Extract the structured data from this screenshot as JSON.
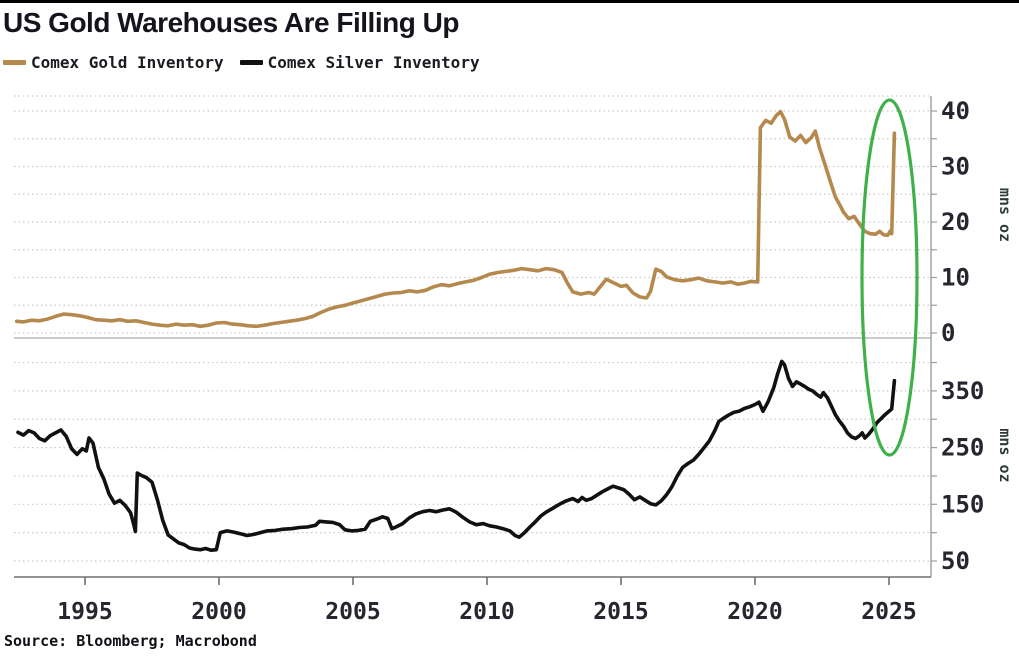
{
  "title": "US Gold Warehouses Are Filling Up",
  "source": "Source: Bloomberg; Macrobond",
  "legend": [
    {
      "label": "Comex Gold Inventory",
      "color": "#b5894e"
    },
    {
      "label": "Comex Silver Inventory",
      "color": "#111111"
    }
  ],
  "axis_unit": "mns oz",
  "x_axis": {
    "ticks": [
      1995,
      2000,
      2005,
      2010,
      2015,
      2020,
      2025
    ],
    "range": [
      1992.4,
      2026.6
    ]
  },
  "annotation": {
    "type": "ellipse",
    "color": "#3fb04a",
    "note": "circles the early-2025 spike in both series"
  },
  "chart_data": [
    {
      "type": "line",
      "panel": "top",
      "name": "Comex Gold Inventory",
      "color": "#b5894e",
      "ylabel": "mns oz",
      "ylim": [
        0,
        42
      ],
      "yticks": [
        0,
        10,
        20,
        30,
        40
      ],
      "gridlines": [
        0,
        5,
        10,
        15,
        20,
        25,
        30,
        35,
        40
      ],
      "points": [
        [
          1992.45,
          2.1
        ],
        [
          1992.7,
          2.0
        ],
        [
          1993.0,
          2.3
        ],
        [
          1993.3,
          2.2
        ],
        [
          1993.6,
          2.5
        ],
        [
          1993.9,
          3.0
        ],
        [
          1994.2,
          3.4
        ],
        [
          1994.5,
          3.3
        ],
        [
          1994.8,
          3.1
        ],
        [
          1995.1,
          2.8
        ],
        [
          1995.4,
          2.4
        ],
        [
          1995.7,
          2.3
        ],
        [
          1996.0,
          2.2
        ],
        [
          1996.3,
          2.4
        ],
        [
          1996.6,
          2.1
        ],
        [
          1996.9,
          2.2
        ],
        [
          1997.2,
          1.9
        ],
        [
          1997.5,
          1.6
        ],
        [
          1997.8,
          1.4
        ],
        [
          1998.1,
          1.3
        ],
        [
          1998.4,
          1.6
        ],
        [
          1998.7,
          1.4
        ],
        [
          1999.0,
          1.5
        ],
        [
          1999.3,
          1.2
        ],
        [
          1999.6,
          1.4
        ],
        [
          1999.9,
          1.8
        ],
        [
          2000.2,
          1.9
        ],
        [
          2000.5,
          1.6
        ],
        [
          2000.8,
          1.5
        ],
        [
          2001.1,
          1.3
        ],
        [
          2001.4,
          1.2
        ],
        [
          2001.7,
          1.4
        ],
        [
          2002.0,
          1.7
        ],
        [
          2002.3,
          1.9
        ],
        [
          2002.6,
          2.1
        ],
        [
          2002.9,
          2.3
        ],
        [
          2003.2,
          2.6
        ],
        [
          2003.5,
          3.0
        ],
        [
          2003.8,
          3.7
        ],
        [
          2004.1,
          4.3
        ],
        [
          2004.4,
          4.7
        ],
        [
          2004.7,
          5.0
        ],
        [
          2005.0,
          5.4
        ],
        [
          2005.3,
          5.8
        ],
        [
          2005.6,
          6.2
        ],
        [
          2005.9,
          6.6
        ],
        [
          2006.2,
          7.0
        ],
        [
          2006.5,
          7.2
        ],
        [
          2006.8,
          7.3
        ],
        [
          2007.1,
          7.6
        ],
        [
          2007.4,
          7.4
        ],
        [
          2007.7,
          7.7
        ],
        [
          2008.0,
          8.3
        ],
        [
          2008.3,
          8.7
        ],
        [
          2008.6,
          8.5
        ],
        [
          2008.9,
          8.9
        ],
        [
          2009.2,
          9.2
        ],
        [
          2009.5,
          9.5
        ],
        [
          2009.8,
          10.0
        ],
        [
          2010.1,
          10.6
        ],
        [
          2010.4,
          10.9
        ],
        [
          2010.7,
          11.1
        ],
        [
          2011.0,
          11.3
        ],
        [
          2011.3,
          11.6
        ],
        [
          2011.6,
          11.4
        ],
        [
          2011.9,
          11.2
        ],
        [
          2012.2,
          11.6
        ],
        [
          2012.5,
          11.4
        ],
        [
          2012.8,
          10.9
        ],
        [
          2013.0,
          9.0
        ],
        [
          2013.2,
          7.4
        ],
        [
          2013.5,
          7.0
        ],
        [
          2013.8,
          7.3
        ],
        [
          2014.0,
          7.0
        ],
        [
          2014.2,
          8.2
        ],
        [
          2014.45,
          9.7
        ],
        [
          2014.7,
          9.1
        ],
        [
          2015.0,
          8.4
        ],
        [
          2015.2,
          8.6
        ],
        [
          2015.45,
          7.2
        ],
        [
          2015.7,
          6.5
        ],
        [
          2015.95,
          6.3
        ],
        [
          2016.1,
          7.5
        ],
        [
          2016.3,
          11.5
        ],
        [
          2016.5,
          11.1
        ],
        [
          2016.7,
          10.1
        ],
        [
          2017.0,
          9.6
        ],
        [
          2017.3,
          9.4
        ],
        [
          2017.6,
          9.6
        ],
        [
          2017.9,
          9.9
        ],
        [
          2018.2,
          9.4
        ],
        [
          2018.5,
          9.2
        ],
        [
          2018.8,
          9.0
        ],
        [
          2019.1,
          9.2
        ],
        [
          2019.35,
          8.8
        ],
        [
          2019.6,
          9.0
        ],
        [
          2019.85,
          9.3
        ],
        [
          2020.1,
          9.2
        ],
        [
          2020.2,
          37.0
        ],
        [
          2020.4,
          38.3
        ],
        [
          2020.6,
          37.8
        ],
        [
          2020.8,
          39.2
        ],
        [
          2020.95,
          39.9
        ],
        [
          2021.1,
          38.5
        ],
        [
          2021.3,
          35.3
        ],
        [
          2021.5,
          34.6
        ],
        [
          2021.7,
          35.6
        ],
        [
          2021.9,
          34.3
        ],
        [
          2022.1,
          35.2
        ],
        [
          2022.25,
          36.4
        ],
        [
          2022.4,
          33.5
        ],
        [
          2022.6,
          30.5
        ],
        [
          2022.8,
          27.5
        ],
        [
          2023.0,
          24.5
        ],
        [
          2023.15,
          23.2
        ],
        [
          2023.3,
          21.8
        ],
        [
          2023.5,
          20.6
        ],
        [
          2023.7,
          21.0
        ],
        [
          2023.9,
          19.6
        ],
        [
          2024.1,
          18.3
        ],
        [
          2024.3,
          17.9
        ],
        [
          2024.5,
          17.8
        ],
        [
          2024.65,
          18.3
        ],
        [
          2024.8,
          17.7
        ],
        [
          2024.95,
          17.6
        ],
        [
          2025.05,
          18.4
        ],
        [
          2025.1,
          17.9
        ],
        [
          2025.2,
          36.0
        ]
      ]
    },
    {
      "type": "line",
      "panel": "bottom",
      "name": "Comex Silver Inventory",
      "color": "#111111",
      "ylabel": "mns oz",
      "ylim": [
        30,
        415
      ],
      "yticks": [
        50,
        150,
        250,
        350
      ],
      "gridlines": [
        50,
        100,
        150,
        200,
        250,
        300,
        350,
        400
      ],
      "points": [
        [
          1992.5,
          277
        ],
        [
          1992.7,
          272
        ],
        [
          1992.9,
          280
        ],
        [
          1993.1,
          276
        ],
        [
          1993.3,
          266
        ],
        [
          1993.5,
          262
        ],
        [
          1993.7,
          271
        ],
        [
          1993.9,
          276
        ],
        [
          1994.1,
          281
        ],
        [
          1994.3,
          270
        ],
        [
          1994.5,
          248
        ],
        [
          1994.7,
          238
        ],
        [
          1994.9,
          248
        ],
        [
          1995.05,
          244
        ],
        [
          1995.15,
          267
        ],
        [
          1995.3,
          258
        ],
        [
          1995.5,
          215
        ],
        [
          1995.7,
          195
        ],
        [
          1995.9,
          168
        ],
        [
          1996.1,
          152
        ],
        [
          1996.3,
          157
        ],
        [
          1996.5,
          148
        ],
        [
          1996.7,
          135
        ],
        [
          1996.8,
          118
        ],
        [
          1996.88,
          102
        ],
        [
          1996.95,
          205
        ],
        [
          1997.1,
          201
        ],
        [
          1997.3,
          197
        ],
        [
          1997.5,
          189
        ],
        [
          1997.7,
          158
        ],
        [
          1997.9,
          122
        ],
        [
          1998.1,
          96
        ],
        [
          1998.3,
          89
        ],
        [
          1998.5,
          82
        ],
        [
          1998.7,
          79
        ],
        [
          1998.9,
          73
        ],
        [
          1999.1,
          71
        ],
        [
          1999.3,
          70
        ],
        [
          1999.5,
          72
        ],
        [
          1999.7,
          69
        ],
        [
          1999.9,
          70
        ],
        [
          2000.05,
          100
        ],
        [
          2000.3,
          103
        ],
        [
          2000.55,
          101
        ],
        [
          2000.8,
          98
        ],
        [
          2001.05,
          95
        ],
        [
          2001.3,
          97
        ],
        [
          2001.55,
          100
        ],
        [
          2001.8,
          103
        ],
        [
          2002.1,
          104
        ],
        [
          2002.4,
          106
        ],
        [
          2002.7,
          107
        ],
        [
          2003.0,
          109
        ],
        [
          2003.3,
          110
        ],
        [
          2003.6,
          113
        ],
        [
          2003.75,
          120
        ],
        [
          2004.0,
          119
        ],
        [
          2004.25,
          118
        ],
        [
          2004.5,
          114
        ],
        [
          2004.7,
          105
        ],
        [
          2004.95,
          103
        ],
        [
          2005.2,
          104
        ],
        [
          2005.45,
          106
        ],
        [
          2005.65,
          120
        ],
        [
          2005.9,
          124
        ],
        [
          2006.1,
          128
        ],
        [
          2006.3,
          125
        ],
        [
          2006.45,
          107
        ],
        [
          2006.6,
          110
        ],
        [
          2006.85,
          116
        ],
        [
          2007.1,
          126
        ],
        [
          2007.35,
          133
        ],
        [
          2007.6,
          137
        ],
        [
          2007.85,
          139
        ],
        [
          2008.1,
          137
        ],
        [
          2008.35,
          140
        ],
        [
          2008.6,
          142
        ],
        [
          2008.85,
          136
        ],
        [
          2009.1,
          127
        ],
        [
          2009.35,
          119
        ],
        [
          2009.6,
          114
        ],
        [
          2009.85,
          116
        ],
        [
          2010.1,
          112
        ],
        [
          2010.35,
          110
        ],
        [
          2010.6,
          107
        ],
        [
          2010.85,
          103
        ],
        [
          2011.05,
          95
        ],
        [
          2011.2,
          92
        ],
        [
          2011.4,
          100
        ],
        [
          2011.6,
          110
        ],
        [
          2011.8,
          119
        ],
        [
          2012.0,
          129
        ],
        [
          2012.2,
          136
        ],
        [
          2012.45,
          143
        ],
        [
          2012.7,
          150
        ],
        [
          2012.95,
          156
        ],
        [
          2013.2,
          160
        ],
        [
          2013.4,
          155
        ],
        [
          2013.55,
          162
        ],
        [
          2013.7,
          157
        ],
        [
          2013.9,
          160
        ],
        [
          2014.1,
          166
        ],
        [
          2014.3,
          172
        ],
        [
          2014.5,
          177
        ],
        [
          2014.7,
          182
        ],
        [
          2014.9,
          179
        ],
        [
          2015.1,
          176
        ],
        [
          2015.3,
          168
        ],
        [
          2015.5,
          158
        ],
        [
          2015.7,
          163
        ],
        [
          2015.9,
          157
        ],
        [
          2016.1,
          151
        ],
        [
          2016.3,
          149
        ],
        [
          2016.5,
          156
        ],
        [
          2016.7,
          167
        ],
        [
          2016.9,
          181
        ],
        [
          2017.1,
          200
        ],
        [
          2017.3,
          215
        ],
        [
          2017.5,
          222
        ],
        [
          2017.7,
          228
        ],
        [
          2017.9,
          238
        ],
        [
          2018.1,
          250
        ],
        [
          2018.3,
          262
        ],
        [
          2018.5,
          280
        ],
        [
          2018.65,
          296
        ],
        [
          2018.8,
          301
        ],
        [
          2019.0,
          307
        ],
        [
          2019.2,
          312
        ],
        [
          2019.4,
          314
        ],
        [
          2019.6,
          319
        ],
        [
          2019.8,
          322
        ],
        [
          2020.0,
          326
        ],
        [
          2020.15,
          330
        ],
        [
          2020.3,
          314
        ],
        [
          2020.5,
          332
        ],
        [
          2020.7,
          356
        ],
        [
          2020.85,
          381
        ],
        [
          2021.0,
          402
        ],
        [
          2021.1,
          396
        ],
        [
          2021.25,
          372
        ],
        [
          2021.4,
          358
        ],
        [
          2021.55,
          366
        ],
        [
          2021.7,
          362
        ],
        [
          2021.85,
          358
        ],
        [
          2022.0,
          353
        ],
        [
          2022.15,
          350
        ],
        [
          2022.3,
          344
        ],
        [
          2022.45,
          339
        ],
        [
          2022.55,
          347
        ],
        [
          2022.7,
          338
        ],
        [
          2022.85,
          323
        ],
        [
          2023.0,
          308
        ],
        [
          2023.15,
          297
        ],
        [
          2023.3,
          288
        ],
        [
          2023.45,
          276
        ],
        [
          2023.6,
          269
        ],
        [
          2023.75,
          266
        ],
        [
          2023.9,
          271
        ],
        [
          2024.0,
          276
        ],
        [
          2024.1,
          267
        ],
        [
          2024.25,
          274
        ],
        [
          2024.4,
          283
        ],
        [
          2024.55,
          294
        ],
        [
          2024.7,
          301
        ],
        [
          2024.85,
          308
        ],
        [
          2025.0,
          314
        ],
        [
          2025.1,
          318
        ],
        [
          2025.2,
          368
        ]
      ]
    }
  ]
}
